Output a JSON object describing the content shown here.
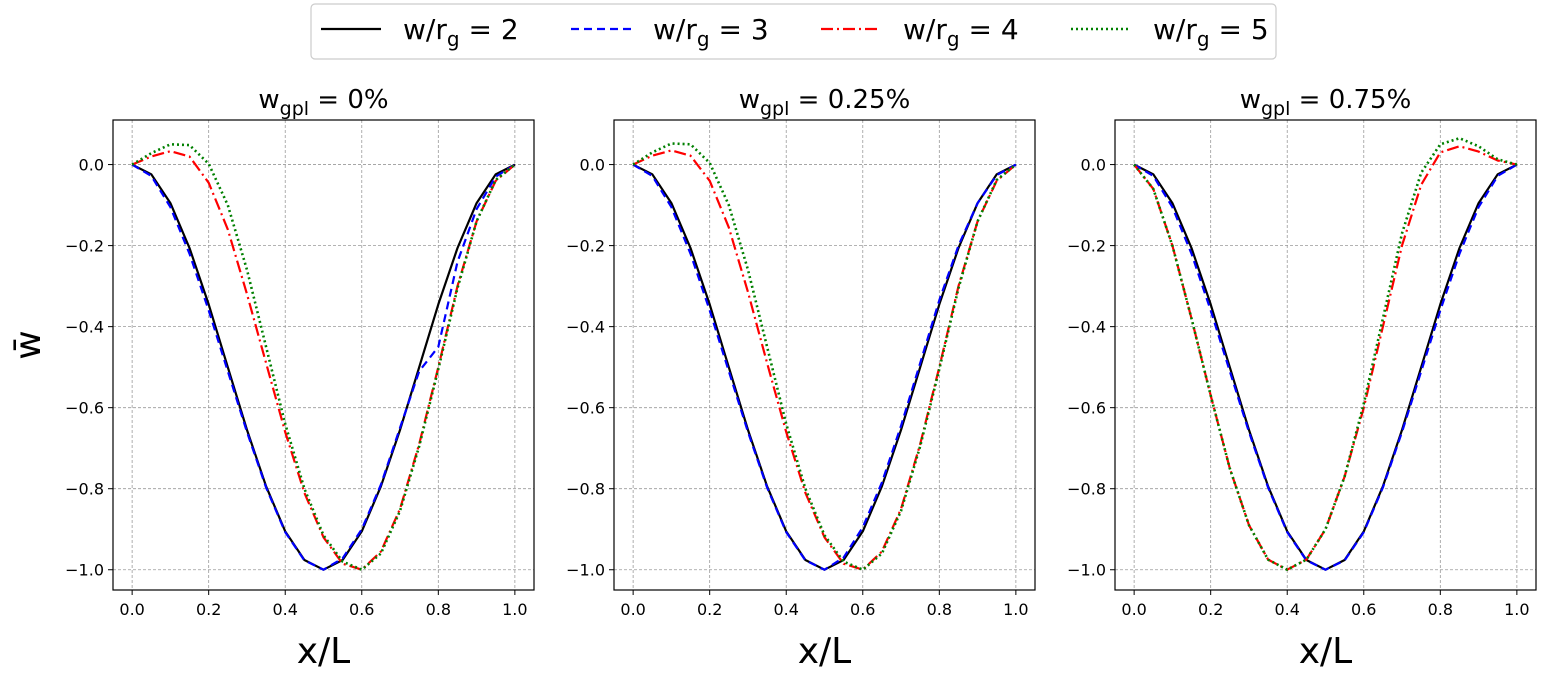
{
  "legend": {
    "placement": "top-center",
    "entries": [
      {
        "pre": "w/r",
        "sub": "g",
        "post": " = 2"
      },
      {
        "pre": "w/r",
        "sub": "g",
        "post": " = 3"
      },
      {
        "pre": "w/r",
        "sub": "g",
        "post": " = 4"
      },
      {
        "pre": "w/r",
        "sub": "g",
        "post": " = 5"
      }
    ]
  },
  "ylabel": "w̄",
  "chart_data": [
    {
      "type": "line",
      "title": {
        "pre": "w",
        "sub": "gpl",
        "post": " = 0%"
      },
      "xlabel": "x/L",
      "xlim": [
        -0.05,
        1.05
      ],
      "ylim": [
        -1.05,
        0.11
      ],
      "xticks": [
        "0.0",
        "0.2",
        "0.4",
        "0.6",
        "0.8",
        "1.0"
      ],
      "yticks": [
        "0.0",
        "−0.2",
        "−0.4",
        "−0.6",
        "−0.8",
        "−1.0"
      ],
      "grid": true,
      "x": [
        0.0,
        0.05,
        0.1,
        0.15,
        0.2,
        0.25,
        0.3,
        0.35,
        0.4,
        0.45,
        0.5,
        0.55,
        0.6,
        0.65,
        0.7,
        0.75,
        0.8,
        0.85,
        0.9,
        0.95,
        1.0
      ],
      "series": [
        {
          "name": "w/r_g = 2",
          "color": "#000000",
          "dash": "solid",
          "values": [
            0.0,
            -0.024,
            -0.095,
            -0.206,
            -0.345,
            -0.5,
            -0.655,
            -0.794,
            -0.905,
            -0.976,
            -1.0,
            -0.976,
            -0.905,
            -0.794,
            -0.655,
            -0.5,
            -0.345,
            -0.206,
            -0.095,
            -0.024,
            0.0
          ]
        },
        {
          "name": "w/r_g = 3",
          "color": "#0000ff",
          "dash": "dashed",
          "values": [
            0.0,
            -0.028,
            -0.105,
            -0.22,
            -0.36,
            -0.51,
            -0.66,
            -0.797,
            -0.907,
            -0.977,
            -1.0,
            -0.972,
            -0.9,
            -0.79,
            -0.65,
            -0.51,
            -0.45,
            -0.24,
            -0.11,
            -0.03,
            0.0
          ]
        },
        {
          "name": "w/r_g = 4",
          "color": "#ff0000",
          "dash": "dashdot",
          "values": [
            0.0,
            0.02,
            0.033,
            0.02,
            -0.045,
            -0.16,
            -0.32,
            -0.49,
            -0.66,
            -0.81,
            -0.92,
            -0.985,
            -1.0,
            -0.955,
            -0.85,
            -0.69,
            -0.5,
            -0.3,
            -0.14,
            -0.04,
            0.0
          ]
        },
        {
          "name": "w/r_g = 5",
          "color": "#008000",
          "dash": "dotted",
          "values": [
            0.0,
            0.028,
            0.05,
            0.048,
            0.002,
            -0.1,
            -0.26,
            -0.45,
            -0.64,
            -0.8,
            -0.915,
            -0.98,
            -1.0,
            -0.96,
            -0.855,
            -0.695,
            -0.505,
            -0.305,
            -0.14,
            -0.038,
            0.0
          ]
        }
      ]
    },
    {
      "type": "line",
      "title": {
        "pre": "w",
        "sub": "gpl",
        "post": " = 0.25%"
      },
      "xlabel": "x/L",
      "xlim": [
        -0.05,
        1.05
      ],
      "ylim": [
        -1.05,
        0.11
      ],
      "xticks": [
        "0.0",
        "0.2",
        "0.4",
        "0.6",
        "0.8",
        "1.0"
      ],
      "yticks": [
        "0.0",
        "−0.2",
        "−0.4",
        "−0.6",
        "−0.8",
        "−1.0"
      ],
      "grid": true,
      "x": [
        0.0,
        0.05,
        0.1,
        0.15,
        0.2,
        0.25,
        0.3,
        0.35,
        0.4,
        0.45,
        0.5,
        0.55,
        0.6,
        0.65,
        0.7,
        0.75,
        0.8,
        0.85,
        0.9,
        0.95,
        1.0
      ],
      "series": [
        {
          "name": "w/r_g = 2",
          "color": "#000000",
          "dash": "solid",
          "values": [
            0.0,
            -0.024,
            -0.095,
            -0.206,
            -0.345,
            -0.5,
            -0.655,
            -0.794,
            -0.905,
            -0.976,
            -1.0,
            -0.976,
            -0.905,
            -0.794,
            -0.655,
            -0.5,
            -0.345,
            -0.206,
            -0.095,
            -0.024,
            0.0
          ]
        },
        {
          "name": "w/r_g = 3",
          "color": "#0000ff",
          "dash": "dashed",
          "values": [
            0.0,
            -0.028,
            -0.105,
            -0.22,
            -0.36,
            -0.51,
            -0.66,
            -0.797,
            -0.907,
            -0.977,
            -1.0,
            -0.97,
            -0.895,
            -0.785,
            -0.645,
            -0.49,
            -0.335,
            -0.2,
            -0.095,
            -0.026,
            0.0
          ]
        },
        {
          "name": "w/r_g = 4",
          "color": "#ff0000",
          "dash": "dashdot",
          "values": [
            0.0,
            0.022,
            0.035,
            0.022,
            -0.04,
            -0.155,
            -0.315,
            -0.49,
            -0.66,
            -0.81,
            -0.92,
            -0.985,
            -1.0,
            -0.955,
            -0.85,
            -0.69,
            -0.5,
            -0.3,
            -0.14,
            -0.04,
            0.0
          ]
        },
        {
          "name": "w/r_g = 5",
          "color": "#008000",
          "dash": "dotted",
          "values": [
            0.0,
            0.03,
            0.052,
            0.05,
            0.004,
            -0.1,
            -0.26,
            -0.45,
            -0.64,
            -0.8,
            -0.915,
            -0.98,
            -1.0,
            -0.96,
            -0.855,
            -0.695,
            -0.505,
            -0.305,
            -0.14,
            -0.038,
            0.0
          ]
        }
      ]
    },
    {
      "type": "line",
      "title": {
        "pre": "w",
        "sub": "gpl",
        "post": " = 0.75%"
      },
      "xlabel": "x/L",
      "xlim": [
        -0.05,
        1.05
      ],
      "ylim": [
        -1.05,
        0.11
      ],
      "xticks": [
        "0.0",
        "0.2",
        "0.4",
        "0.6",
        "0.8",
        "1.0"
      ],
      "yticks": [
        "0.0",
        "−0.2",
        "−0.4",
        "−0.6",
        "−0.8",
        "−1.0"
      ],
      "grid": true,
      "x": [
        0.0,
        0.05,
        0.1,
        0.15,
        0.2,
        0.25,
        0.3,
        0.35,
        0.4,
        0.45,
        0.5,
        0.55,
        0.6,
        0.65,
        0.7,
        0.75,
        0.8,
        0.85,
        0.9,
        0.95,
        1.0
      ],
      "series": [
        {
          "name": "w/r_g = 2",
          "color": "#000000",
          "dash": "solid",
          "values": [
            0.0,
            -0.024,
            -0.095,
            -0.206,
            -0.345,
            -0.5,
            -0.655,
            -0.794,
            -0.905,
            -0.976,
            -1.0,
            -0.976,
            -0.905,
            -0.794,
            -0.655,
            -0.5,
            -0.345,
            -0.206,
            -0.095,
            -0.024,
            0.0
          ]
        },
        {
          "name": "w/r_g = 3",
          "color": "#0000ff",
          "dash": "dashed",
          "values": [
            0.0,
            -0.028,
            -0.105,
            -0.22,
            -0.36,
            -0.51,
            -0.66,
            -0.797,
            -0.907,
            -0.977,
            -1.0,
            -0.977,
            -0.907,
            -0.797,
            -0.66,
            -0.51,
            -0.36,
            -0.22,
            -0.105,
            -0.028,
            0.0
          ]
        },
        {
          "name": "w/r_g = 4",
          "color": "#ff0000",
          "dash": "dashdot",
          "values": [
            0.0,
            -0.06,
            -0.2,
            -0.38,
            -0.57,
            -0.75,
            -0.89,
            -0.975,
            -1.0,
            -0.975,
            -0.9,
            -0.77,
            -0.6,
            -0.4,
            -0.2,
            -0.05,
            0.03,
            0.045,
            0.032,
            0.01,
            0.0
          ]
        },
        {
          "name": "w/r_g = 5",
          "color": "#008000",
          "dash": "dotted",
          "values": [
            0.0,
            -0.06,
            -0.2,
            -0.38,
            -0.57,
            -0.75,
            -0.89,
            -0.975,
            -1.0,
            -0.975,
            -0.9,
            -0.77,
            -0.59,
            -0.38,
            -0.17,
            -0.02,
            0.05,
            0.065,
            0.045,
            0.013,
            0.0
          ]
        }
      ]
    }
  ]
}
